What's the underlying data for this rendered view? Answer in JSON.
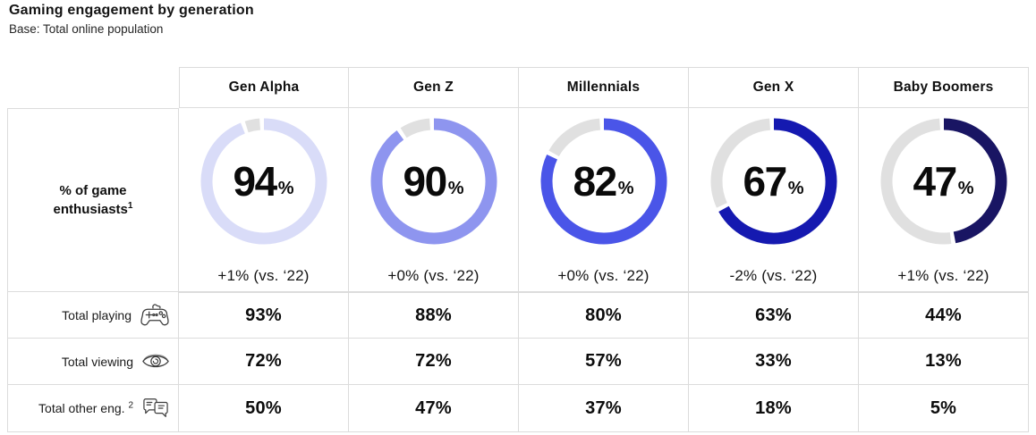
{
  "page": {
    "title": "Gaming engagement by generation",
    "subtitle": "Base: Total online population"
  },
  "table": {
    "generations": [
      "Gen Alpha",
      "Gen Z",
      "Millennials",
      "Gen X",
      "Baby Boomers"
    ],
    "enthusiasts_label": "% of game enthusiasts",
    "enthusiasts_sup": "1",
    "rows": [
      {
        "label": "Total playing",
        "sup": "",
        "icon": "gamepad-icon",
        "values": [
          "93%",
          "88%",
          "80%",
          "63%",
          "44%"
        ]
      },
      {
        "label": "Total viewing",
        "sup": "",
        "icon": "eye-icon",
        "values": [
          "72%",
          "72%",
          "57%",
          "33%",
          "13%"
        ]
      },
      {
        "label": "Total other eng.",
        "sup": "2",
        "icon": "chat-icon",
        "values": [
          "50%",
          "47%",
          "37%",
          "18%",
          "5%"
        ]
      }
    ]
  },
  "chart_data": {
    "type": "donut",
    "title": "Gaming engagement by generation",
    "subtitle": "Base: Total online population",
    "categories": [
      "Gen Alpha",
      "Gen Z",
      "Millennials",
      "Gen X",
      "Baby Boomers"
    ],
    "series": [
      {
        "name": "% of game enthusiasts",
        "unit": "%",
        "values": [
          94,
          90,
          82,
          67,
          47
        ],
        "changes": [
          "+1% (vs. ‘22)",
          "+0% (vs. ‘22)",
          "+0% (vs. ‘22)",
          "-2% (vs. ‘22)",
          "+1% (vs. ‘22)"
        ]
      },
      {
        "name": "Total playing",
        "unit": "%",
        "values": [
          93,
          88,
          80,
          63,
          44
        ]
      },
      {
        "name": "Total viewing",
        "unit": "%",
        "values": [
          72,
          72,
          57,
          33,
          13
        ]
      },
      {
        "name": "Total other eng.",
        "unit": "%",
        "values": [
          50,
          47,
          37,
          18,
          5
        ]
      }
    ],
    "donut_colors": [
      "#d9dcf8",
      "#8e95ef",
      "#4a55e8",
      "#1519b0",
      "#191563"
    ],
    "track_color": "#e0e0e0",
    "legend": "none",
    "value_range": [
      0,
      100
    ]
  }
}
